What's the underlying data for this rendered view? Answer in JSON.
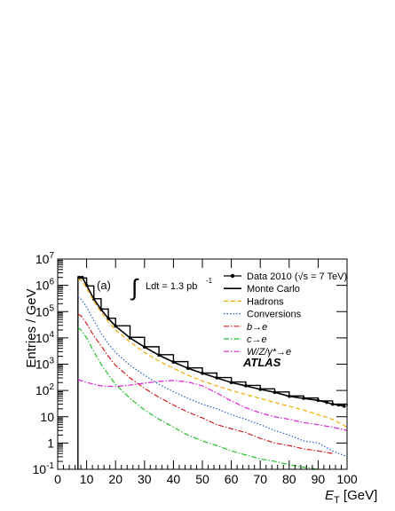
{
  "chart_data": {
    "type": "line",
    "xlabel": "E_T [GeV]",
    "ylabel": "Entries / GeV",
    "x_ticks": [
      "0",
      "10",
      "20",
      "30",
      "40",
      "50",
      "60",
      "70",
      "80",
      "90",
      "100"
    ],
    "y_ticks": [
      "10^-1",
      "1",
      "10",
      "10^2",
      "10^3",
      "10^4",
      "10^5",
      "10^6",
      "10^7"
    ],
    "xlim": [
      0,
      100
    ],
    "ylim": [
      0.1,
      10000000
    ],
    "yscale": "log",
    "panel_label": "(a)",
    "lumi_text": "Ldt = 1.3 pb",
    "lumi_exponent": "-1",
    "atlas_label": "ATLAS",
    "legend_position": "top-right",
    "series": [
      {
        "name": "Data 2010 (√s = 7 TeV)",
        "style": "points",
        "color": "#000000",
        "x": [
          7.5,
          8.5,
          10,
          12.5,
          15,
          17.5,
          20,
          25,
          30,
          35,
          40,
          45,
          50,
          55,
          60,
          65,
          70,
          75,
          80,
          85,
          90,
          93,
          95,
          97,
          99
        ],
        "y": [
          2000000,
          2000000,
          1000000,
          300000,
          120000,
          55000,
          28000,
          10000,
          4500,
          2200,
          1200,
          700,
          450,
          300,
          200,
          150,
          110,
          85,
          60,
          50,
          42,
          35,
          30,
          28,
          25
        ]
      },
      {
        "name": "Monte Carlo",
        "style": "hist",
        "color": "#000000",
        "x": [
          7,
          8,
          10,
          12.5,
          15,
          17.5,
          20,
          25,
          30,
          35,
          40,
          45,
          50,
          55,
          60,
          65,
          70,
          75,
          80,
          85,
          90,
          95,
          100
        ],
        "y": [
          2100000,
          1900000,
          950000,
          310000,
          125000,
          56000,
          29000,
          10500,
          4600,
          2300,
          1250,
          720,
          460,
          310,
          210,
          155,
          115,
          88,
          62,
          52,
          40,
          30,
          25
        ]
      },
      {
        "name": "Hadrons",
        "style": "dashed",
        "color": "#f2a900",
        "x": [
          7,
          8,
          10,
          12.5,
          15,
          17.5,
          20,
          25,
          30,
          35,
          40,
          45,
          50,
          55,
          60,
          65,
          70,
          75,
          80,
          85,
          90,
          95,
          100
        ],
        "y": [
          1700000,
          1600000,
          800000,
          250000,
          95000,
          42000,
          20000,
          7000,
          2800,
          1300,
          700,
          380,
          230,
          150,
          100,
          70,
          50,
          35,
          25,
          18,
          12,
          8,
          4
        ]
      },
      {
        "name": "Conversions",
        "style": "dotted",
        "color": "#1e5fd6",
        "x": [
          7,
          8,
          10,
          12.5,
          15,
          17.5,
          20,
          25,
          30,
          35,
          40,
          45,
          50,
          55,
          60,
          65,
          70,
          75,
          80,
          85,
          90,
          95,
          100
        ],
        "y": [
          350000,
          300000,
          150000,
          45000,
          15000,
          6000,
          2800,
          900,
          380,
          170,
          90,
          50,
          30,
          20,
          12,
          8,
          5,
          3,
          2,
          1.2,
          1,
          0.5,
          0.3
        ]
      },
      {
        "name": "b→e",
        "style": "dashdot",
        "color": "#d61e1e",
        "x": [
          7,
          8,
          10,
          12.5,
          15,
          17.5,
          20,
          25,
          30,
          35,
          40,
          45,
          50,
          55,
          60,
          65,
          70,
          75,
          80,
          85,
          90,
          95
        ],
        "y": [
          80000,
          70000,
          35000,
          12000,
          5000,
          2000,
          900,
          300,
          120,
          55,
          28,
          15,
          9,
          5,
          3.5,
          2.5,
          1.5,
          1,
          0.8,
          0.6,
          0.5,
          0.4
        ]
      },
      {
        "name": "c→e",
        "style": "dashdot",
        "color": "#22c02a",
        "x": [
          7,
          8,
          10,
          12.5,
          15,
          17.5,
          20,
          25,
          30,
          35,
          40,
          45,
          50,
          55,
          60,
          65,
          70,
          75,
          80,
          85,
          90
        ],
        "y": [
          25000,
          20000,
          10000,
          3000,
          1000,
          400,
          170,
          50,
          18,
          8,
          4,
          2,
          1.2,
          0.8,
          0.5,
          0.35,
          0.25,
          0.2,
          0.15,
          0.12,
          0.1
        ]
      },
      {
        "name": "W/Z/γ*→e",
        "style": "dashdot",
        "color": "#e020d8",
        "x": [
          7,
          10,
          15,
          20,
          25,
          30,
          35,
          40,
          45,
          50,
          55,
          60,
          65,
          70,
          75,
          80,
          85,
          90,
          95,
          100
        ],
        "y": [
          260,
          200,
          150,
          140,
          160,
          190,
          220,
          240,
          210,
          150,
          80,
          40,
          22,
          14,
          10,
          8,
          6,
          5,
          4,
          3
        ]
      }
    ]
  }
}
